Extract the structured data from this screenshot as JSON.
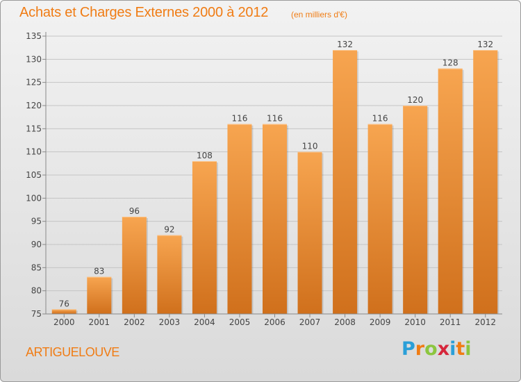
{
  "header": {
    "title": "Achats et Charges Externes 2000 à 2012",
    "subtitle": "(en milliers d'€)"
  },
  "footer": {
    "commune": "ARTIGUELOUVE",
    "logo_text": "Proxiti",
    "logo_letters": [
      "P",
      "r",
      "o",
      "x",
      "i",
      "t",
      "i"
    ],
    "logo_colors": [
      "#2a9fd8",
      "#f07c14",
      "#8cc63f",
      "#d6263b",
      "#2a9fd8",
      "#f07c14",
      "#8cc63f"
    ]
  },
  "colors": {
    "bar_top": "#f7a550",
    "bar_bottom": "#d0701c",
    "accent": "#f07c14"
  },
  "chart_data": {
    "type": "bar",
    "categories": [
      "2000",
      "2001",
      "2002",
      "2003",
      "2004",
      "2005",
      "2006",
      "2007",
      "2008",
      "2009",
      "2010",
      "2011",
      "2012"
    ],
    "values": [
      76,
      83,
      96,
      92,
      108,
      116,
      116,
      110,
      132,
      116,
      120,
      128,
      132
    ],
    "data_labels": [
      "76",
      "83",
      "96",
      "92",
      "108",
      "116",
      "116",
      "110",
      "132",
      "116",
      "120",
      "128",
      "132"
    ],
    "yticks": [
      "75",
      "80",
      "85",
      "90",
      "95",
      "100",
      "105",
      "110",
      "115",
      "120",
      "125",
      "130",
      "135"
    ],
    "ytick_values": [
      75,
      80,
      85,
      90,
      95,
      100,
      105,
      110,
      115,
      120,
      125,
      130,
      135
    ],
    "ylim": [
      75,
      135
    ],
    "grid": true,
    "xlabel": "",
    "ylabel": ""
  }
}
